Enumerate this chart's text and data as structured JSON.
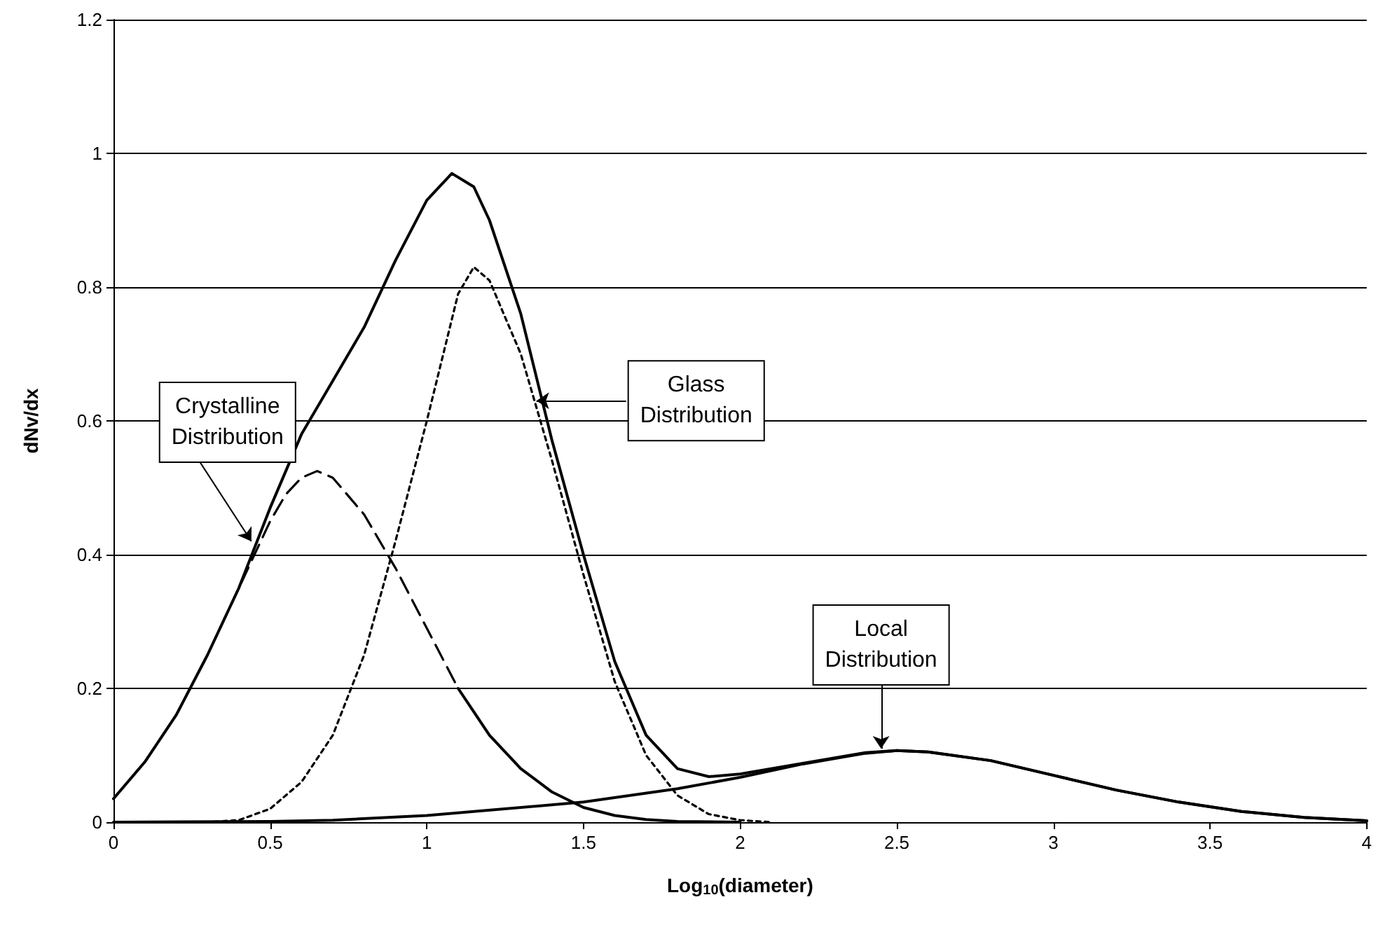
{
  "chart_data": {
    "type": "line",
    "xlabel": "Log$_{10}$(diameter)",
    "ylabel": "dNv/dx",
    "xlim": [
      0,
      4
    ],
    "xticks": [
      0,
      0.5,
      1,
      1.5,
      2,
      2.5,
      3,
      3.5,
      4
    ],
    "ylim": [
      0,
      1.2
    ],
    "yticks": [
      0,
      0.2,
      0.4,
      0.6,
      0.8,
      1,
      1.2
    ],
    "grid": "y",
    "marker": "none",
    "series": [
      {
        "color": "#000000",
        "line_style": "solid",
        "x": [
          0,
          0.1,
          0.2,
          0.3,
          0.4,
          0.5,
          0.6,
          0.7,
          0.8,
          0.9,
          1.0,
          1.08,
          1.15,
          1.2,
          1.3,
          1.4,
          1.5,
          1.6,
          1.7,
          1.8,
          1.9,
          2.0,
          2.2,
          2.4,
          2.5,
          2.6,
          2.8,
          3.0,
          3.2,
          3.4,
          3.6,
          3.8,
          4.0
        ],
        "values": [
          0.035,
          0.09,
          0.16,
          0.25,
          0.35,
          0.47,
          0.58,
          0.66,
          0.74,
          0.84,
          0.93,
          0.97,
          0.95,
          0.9,
          0.76,
          0.57,
          0.4,
          0.24,
          0.13,
          0.08,
          0.068,
          0.072,
          0.088,
          0.104,
          0.107,
          0.105,
          0.092,
          0.07,
          0.048,
          0.03,
          0.016,
          0.007,
          0.002
        ]
      },
      {
        "color": "#000000",
        "line_style": "dashed",
        "x": [
          0,
          0.1,
          0.2,
          0.3,
          0.4,
          0.5,
          0.55,
          0.6,
          0.65,
          0.7,
          0.8,
          0.9,
          1.0,
          1.1
        ],
        "values": [
          0.035,
          0.09,
          0.16,
          0.25,
          0.35,
          0.45,
          0.49,
          0.515,
          0.525,
          0.515,
          0.46,
          0.38,
          0.29,
          0.2
        ]
      },
      {
        "color": "#000000",
        "line_style": "solid",
        "x": [
          1.1,
          1.2,
          1.3,
          1.4,
          1.5,
          1.6,
          1.7,
          1.8,
          2.0
        ],
        "values": [
          0.2,
          0.13,
          0.08,
          0.045,
          0.022,
          0.01,
          0.004,
          0.001,
          0
        ]
      },
      {
        "color": "#000000",
        "line_style": "dotted",
        "x": [
          0,
          0.3,
          0.4,
          0.5,
          0.6,
          0.7,
          0.8,
          0.9,
          1.0,
          1.1,
          1.15,
          1.2,
          1.3,
          1.4,
          1.5,
          1.6,
          1.7,
          1.8,
          1.9,
          2.0,
          2.1
        ],
        "values": [
          0,
          0,
          0.003,
          0.02,
          0.06,
          0.13,
          0.25,
          0.42,
          0.6,
          0.79,
          0.83,
          0.81,
          0.7,
          0.54,
          0.37,
          0.21,
          0.1,
          0.04,
          0.012,
          0.003,
          0
        ]
      },
      {
        "color": "#000000",
        "line_style": "solid",
        "x": [
          0,
          0.5,
          0.7,
          1.0,
          1.5,
          1.8,
          2.0,
          2.2,
          2.4,
          2.5,
          2.6,
          2.8,
          3.0,
          3.2,
          3.4,
          3.6,
          3.8,
          4.0
        ],
        "values": [
          0,
          0.001,
          0.003,
          0.01,
          0.03,
          0.05,
          0.067,
          0.087,
          0.103,
          0.107,
          0.105,
          0.092,
          0.07,
          0.048,
          0.03,
          0.016,
          0.007,
          0.002
        ]
      }
    ],
    "annotations": [
      {
        "text": "Crystalline\nDistribution",
        "x": 0.44,
        "y": 0.42
      },
      {
        "text": "Glass\nDistribution",
        "x": 1.35,
        "y": 0.63
      },
      {
        "text": "Local\nDistribution",
        "x": 2.45,
        "y": 0.11
      }
    ]
  }
}
